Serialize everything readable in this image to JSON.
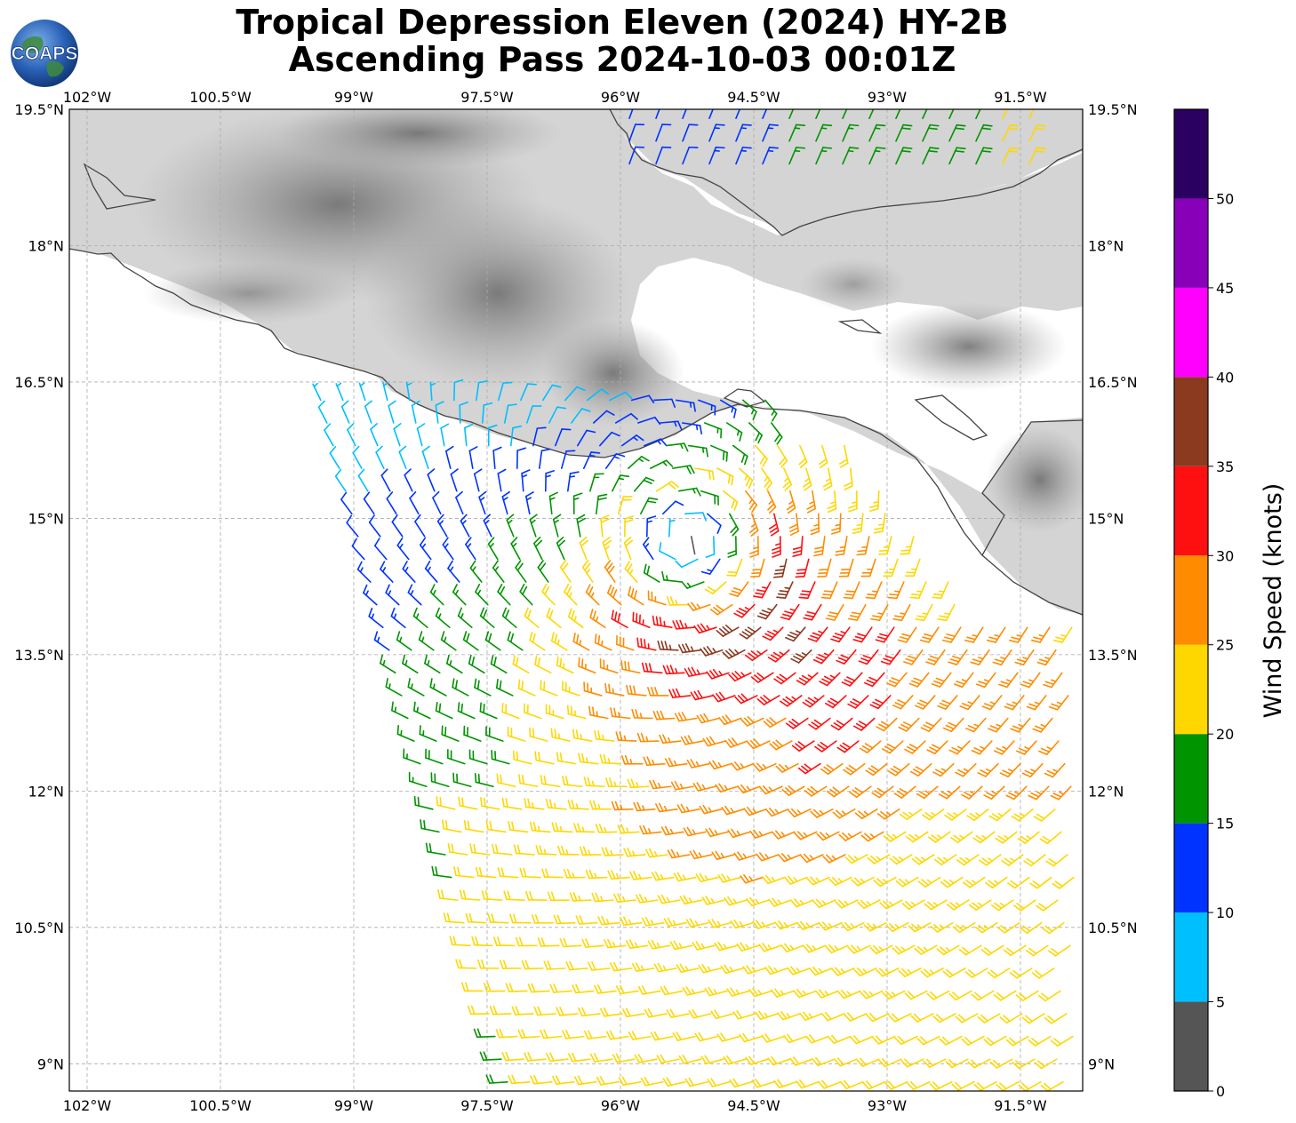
{
  "title": {
    "line1": "Tropical Depression Eleven (2024) HY-2B",
    "line2": "Ascending Pass 2024-10-03 00:01Z"
  },
  "logo": {
    "text": "COAPS",
    "icon": "globe-logo-icon"
  },
  "map": {
    "lon_range": [
      -102.2,
      -90.8
    ],
    "lat_range": [
      8.7,
      19.5
    ],
    "lon_ticks": [
      "102°W",
      "100.5°W",
      "99°W",
      "97.5°W",
      "96°W",
      "94.5°W",
      "93°W",
      "91.5°W"
    ],
    "lat_ticks": [
      "19.5°N",
      "18°N",
      "16.5°N",
      "15°N",
      "13.5°N",
      "12°N",
      "10.5°N",
      "9°N"
    ],
    "gridlines": true,
    "land_shading": "grayscale terrain",
    "wind_barbs": "scatterometer wind barbs colored by speed, cyclonic circulation centered near 14.6°N 95°W"
  },
  "colorbar": {
    "label": "Wind Speed (knots)",
    "ticks": [
      "0",
      "5",
      "10",
      "15",
      "20",
      "25",
      "30",
      "35",
      "40",
      "45",
      "50"
    ],
    "bins": [
      {
        "min": 0,
        "max": 5,
        "color": "#555555"
      },
      {
        "min": 5,
        "max": 10,
        "color": "#00bfff"
      },
      {
        "min": 10,
        "max": 15,
        "color": "#0033ff"
      },
      {
        "min": 15,
        "max": 20,
        "color": "#009400"
      },
      {
        "min": 20,
        "max": 25,
        "color": "#ffd700"
      },
      {
        "min": 25,
        "max": 30,
        "color": "#ff8c00"
      },
      {
        "min": 30,
        "max": 35,
        "color": "#ff1010"
      },
      {
        "min": 35,
        "max": 40,
        "color": "#8b3a20"
      },
      {
        "min": 40,
        "max": 45,
        "color": "#ff00ff"
      },
      {
        "min": 45,
        "max": 50,
        "color": "#8800b8"
      },
      {
        "min": 50,
        "max": 55,
        "color": "#2a0060"
      }
    ]
  }
}
